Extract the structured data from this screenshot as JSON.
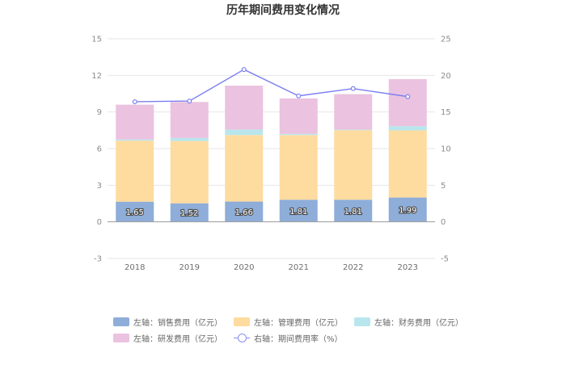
{
  "chart_data": {
    "type": "bar",
    "title": "历年期间费用变化情况",
    "categories": [
      "2018",
      "2019",
      "2020",
      "2021",
      "2022",
      "2023"
    ],
    "y_left": {
      "ticks": [
        "-3",
        "0",
        "3",
        "6",
        "9",
        "12",
        "15"
      ],
      "ylim": [
        -3,
        15
      ]
    },
    "y_right": {
      "ticks": [
        "-5",
        "0",
        "5",
        "10",
        "15",
        "20",
        "25"
      ],
      "ylim": [
        -5,
        25
      ]
    },
    "series": [
      {
        "name": "左轴：销售费用（亿元）",
        "type": "bar",
        "axis": "left",
        "color": "#8eadd9",
        "values": [
          1.65,
          1.52,
          1.66,
          1.81,
          1.81,
          1.99
        ],
        "labels": [
          "1.65",
          "1.52",
          "1.66",
          "1.81",
          "1.81",
          "1.99"
        ]
      },
      {
        "name": "左轴：管理费用（亿元）",
        "type": "bar",
        "axis": "left",
        "color": "#fedb9f",
        "values": [
          5.0,
          5.1,
          5.45,
          5.3,
          5.7,
          5.5
        ]
      },
      {
        "name": "左轴：财务费用（亿元）",
        "type": "bar",
        "axis": "left",
        "color": "#b9e6ec",
        "values": [
          0.1,
          0.25,
          0.45,
          0.1,
          0.05,
          0.35
        ]
      },
      {
        "name": "左轴：研发费用（亿元）",
        "type": "bar",
        "axis": "left",
        "color": "#ebc2e0",
        "values": [
          2.85,
          2.95,
          3.6,
          2.9,
          2.9,
          3.85
        ]
      },
      {
        "name": "右轴：期间费用率（%）",
        "type": "line",
        "axis": "right",
        "color": "#7b7ff0",
        "values": [
          16.4,
          16.5,
          20.8,
          17.2,
          18.2,
          17.1
        ]
      }
    ],
    "grid": true,
    "legend": "bottom"
  }
}
